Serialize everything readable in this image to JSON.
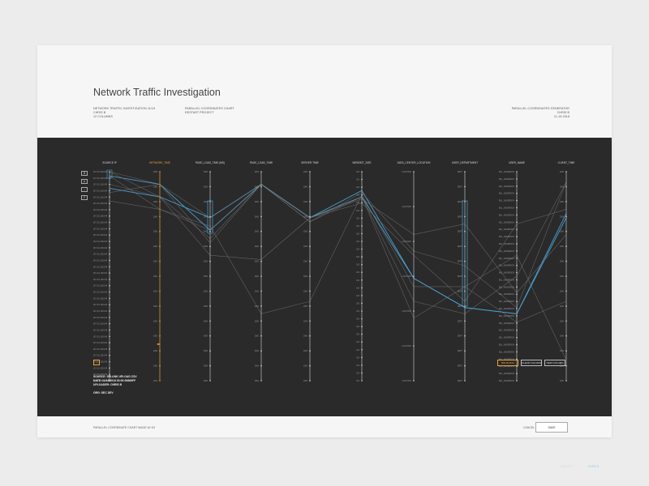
{
  "header": {
    "title": "Network Traffic Investigation",
    "col1": [
      "NETWORK TRAFFIC INVESTIGATION 11/19",
      "CHRIS B",
      "12 COLUMNS"
    ],
    "col2": [
      "PARALLEL COORDINATES CHART",
      "RESTART PROJECT"
    ],
    "col3": [
      "PARALLEL COORDINATES GENERATOR",
      "CHRIS B",
      "11-19-2018"
    ]
  },
  "controls": [
    "B",
    "A",
    "↓",
    "F"
  ],
  "plot": {
    "active_column": "NETWORK_TIME",
    "line_color_default": "#7a7a7a",
    "line_color_highlight": "#4aa3d6",
    "brush_color": "#4aa3d6",
    "axes": [
      {
        "name": "SOURCE IP",
        "ticks": 34,
        "side": "left",
        "label_text": "167.101.158.249"
      },
      {
        "name": "NETWORK_TIME",
        "ticks": 15,
        "side": "left",
        "label_text": "1000"
      },
      {
        "name": "PAGE_LOAD_TIME (ms)",
        "ticks": 15,
        "side": "left",
        "label_text": "3000"
      },
      {
        "name": "PAGE_LOAD_TIME",
        "ticks": 15,
        "side": "left",
        "label_text": "2000"
      },
      {
        "name": "SERVER TIME",
        "ticks": 15,
        "side": "left",
        "label_text": "1000"
      },
      {
        "name": "WEBSEIT_SIZE",
        "ticks": 28,
        "side": "left",
        "label_text": "100"
      },
      {
        "name": "DATA_CENTER_LOCATION",
        "ticks": 7,
        "side": "left",
        "label_text": "LOCATION"
      },
      {
        "name": "USER_DEPARTMENT",
        "ticks": 15,
        "side": "left",
        "label_text": "DEPT"
      },
      {
        "name": "USER_NAME",
        "ticks": 30,
        "side": "left",
        "label_text": "BILL_ANDERSON"
      },
      {
        "name": "CLIENT_TIME",
        "ticks": 15,
        "side": "left",
        "label_text": "1000"
      }
    ]
  },
  "arrows_label": "◂▸",
  "small_button": "?",
  "source_info": [
    "SOURCE: SPLUNK UPLOAD CSV",
    "DATE: 11/19/2018 00:00:00689FF",
    "UPLOADER: CHRIS B"
  ],
  "org": "ORG: SEC DEV",
  "buttons": {
    "brushing": "BRUSHING",
    "clear_column": "CLEAR COLUMN",
    "new_column": "NEW COLUMN"
  },
  "footer": {
    "left": "PARALLEL COORDINATE CHART MADE W/ D3",
    "cancel": "CANCEL",
    "save": "SAVE"
  },
  "outside": {
    "left": "SHOT BY: ···",
    "right": "CHRIS B"
  }
}
